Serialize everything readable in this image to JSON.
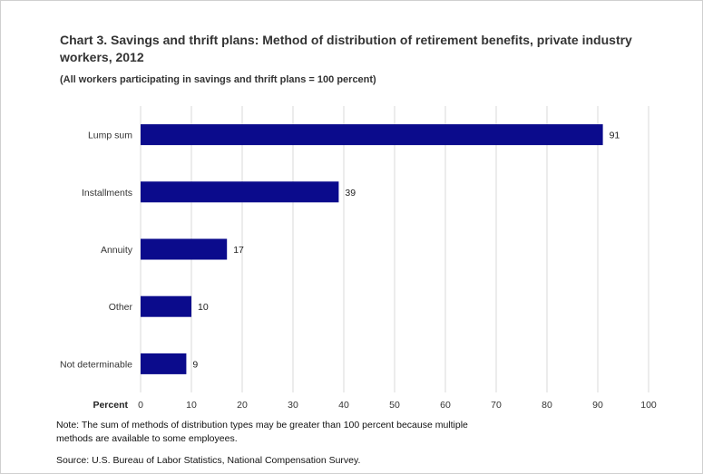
{
  "chart_data": {
    "type": "bar",
    "orientation": "horizontal",
    "title": "Chart 3. Savings and thrift plans: Method of distribution of retirement benefits, private industry workers, 2012",
    "subtitle": "(All workers participating  in savings  and  thrift plans  = 100 percent)",
    "xlabel": "Percent",
    "ylabel": "",
    "categories": [
      "Lump sum",
      "Installments",
      "Annuity",
      "Other",
      "Not determinable"
    ],
    "values": [
      91,
      39,
      17,
      10,
      9
    ],
    "xlim": [
      0,
      100
    ],
    "xticks": [
      "0",
      "10",
      "20",
      "30",
      "40",
      "50",
      "60",
      "70",
      "80",
      "90",
      "100"
    ],
    "grid": "vertical",
    "legend": "none",
    "bar_color": "#0b0b8c",
    "grid_color": "#d9d9d9"
  },
  "note": "Note:  The sum of methods of distribution types may be greater than 100 percent because multiple methods are available to some employees.",
  "source": "Source: U.S. Bureau of Labor Statistics, National Compensation Survey."
}
